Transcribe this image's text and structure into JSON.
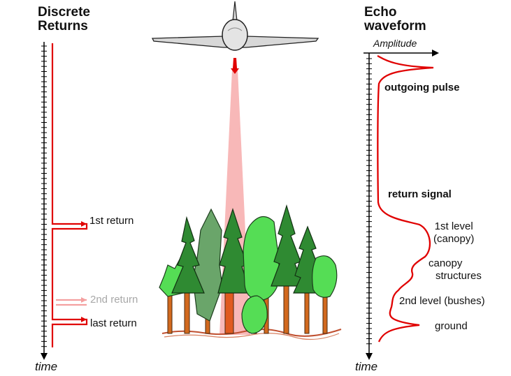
{
  "discrete": {
    "title_line1": "Discrete",
    "title_line2": "Returns",
    "first_return": "1st return",
    "second_return": "2nd return",
    "last_return": "last return",
    "time": "time"
  },
  "waveform": {
    "title_line1": "Echo",
    "title_line2": "waveform",
    "amplitude": "Amplitude",
    "outgoing_pulse": "outgoing pulse",
    "return_signal": "return signal",
    "level1_line1": "1st level",
    "level1_line2": "(canopy)",
    "canopy_line1": "canopy",
    "canopy_line2": "structures",
    "level2": "2nd level (bushes)",
    "ground": "ground",
    "time": "time"
  },
  "colors": {
    "signal_red": "#e00000",
    "faded_red": "#f4a0a0",
    "beam": "#f7b0b0",
    "tree_dark": "#2f8a32",
    "tree_light": "#55dd55",
    "tree_grey": "#6aa56a",
    "trunk": "#d2691e"
  }
}
